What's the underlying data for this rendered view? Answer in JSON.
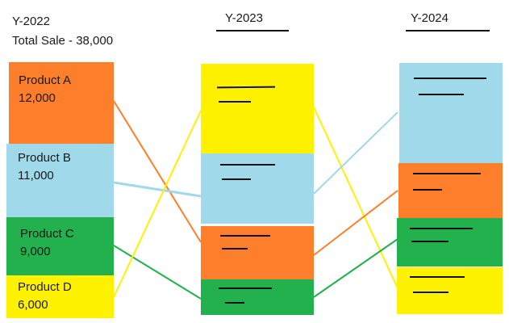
{
  "left_column": {
    "year": "Y-2022",
    "total_sale": "Total Sale -  38,000",
    "products": [
      {
        "name": "Product A",
        "value": "12,000",
        "color": "#fe7f2b"
      },
      {
        "name": "Product B",
        "value": "11,000",
        "color": "#a0d9ea"
      },
      {
        "name": "Product C",
        "value": "9,000",
        "color": "#22b14c"
      },
      {
        "name": "Product D",
        "value": "6,000",
        "color": "#fff200"
      }
    ]
  },
  "middle_column": {
    "year": "Y-2023",
    "order": [
      "Product D",
      "Product B",
      "Product A",
      "Product C"
    ]
  },
  "right_column": {
    "year": "Y-2024",
    "order": [
      "Product B",
      "Product A",
      "Product C",
      "Product D"
    ]
  },
  "colors": {
    "product_a": "#fe7f2b",
    "product_b": "#a0d9ea",
    "product_c": "#22b14c",
    "product_d": "#fff200",
    "redaction_marks": "#111111"
  }
}
